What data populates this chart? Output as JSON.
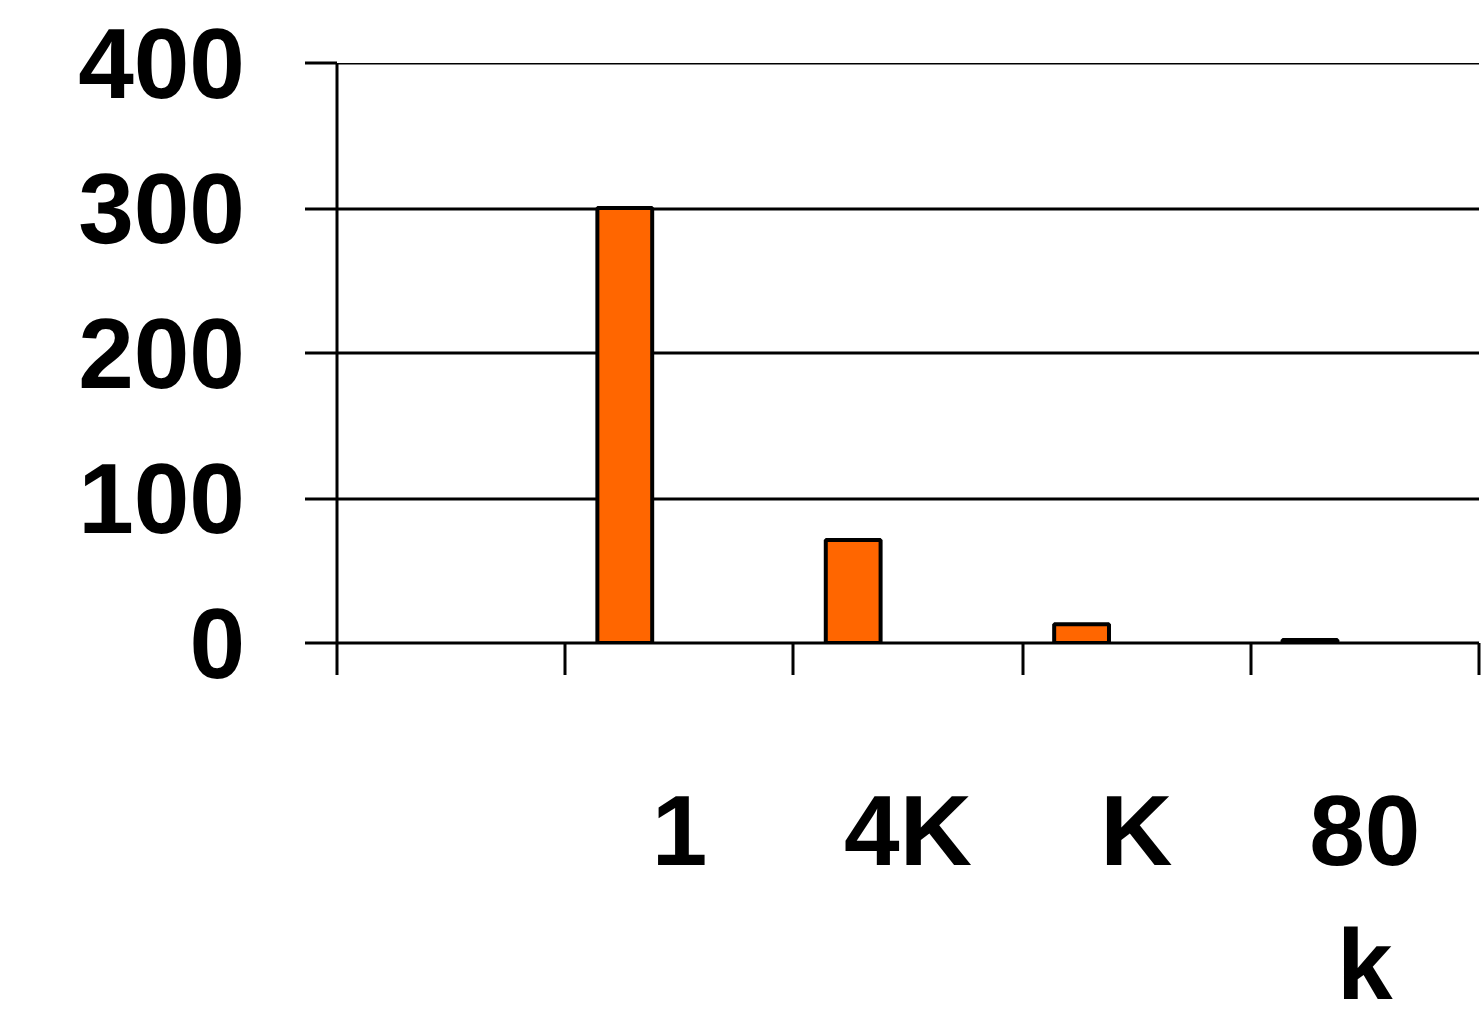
{
  "chart_data": {
    "type": "bar",
    "categories": [
      null,
      "1",
      "4K",
      "K",
      "80\nk"
    ],
    "values": [
      null,
      300,
      71,
      13,
      2
    ],
    "color": "#ff6600",
    "ylim": [
      0,
      400
    ],
    "yticks": [
      0,
      100,
      200,
      300,
      400
    ],
    "grid": "y"
  }
}
